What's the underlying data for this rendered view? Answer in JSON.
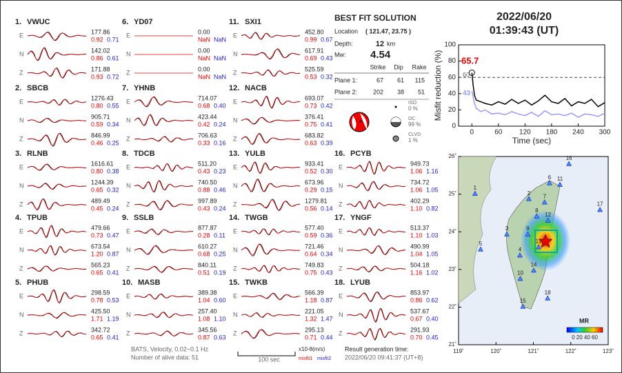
{
  "stations": [
    {
      "index": "1.",
      "name": "VWUC",
      "traces": [
        {
          "comp": "E",
          "amp": "177.86",
          "misfit1": "0.92",
          "misfit2": "0.71"
        },
        {
          "comp": "N",
          "amp": "142.02",
          "misfit1": "0.86",
          "misfit2": "0.61"
        },
        {
          "comp": "Z",
          "amp": "171.88",
          "misfit1": "0.93",
          "misfit2": "0.72"
        }
      ]
    },
    {
      "index": "2.",
      "name": "SBCB",
      "traces": [
        {
          "comp": "E",
          "amp": "1276.43",
          "misfit1": "0.80",
          "misfit2": "0.55"
        },
        {
          "comp": "N",
          "amp": "905.71",
          "misfit1": "0.59",
          "misfit2": "0.34"
        },
        {
          "comp": "Z",
          "amp": "846.99",
          "misfit1": "0.46",
          "misfit2": "0.25"
        }
      ]
    },
    {
      "index": "3.",
      "name": "RLNB",
      "traces": [
        {
          "comp": "E",
          "amp": "1616.61",
          "misfit1": "0.80",
          "misfit2": "0.38"
        },
        {
          "comp": "N",
          "amp": "1244.39",
          "misfit1": "0.65",
          "misfit2": "0.32"
        },
        {
          "comp": "Z",
          "amp": "489.49",
          "misfit1": "0.45",
          "misfit2": "0.24"
        }
      ]
    },
    {
      "index": "4.",
      "name": "TPUB",
      "traces": [
        {
          "comp": "E",
          "amp": "479.66",
          "misfit1": "0.73",
          "misfit2": "0.47"
        },
        {
          "comp": "N",
          "amp": "673.54",
          "misfit1": "1.20",
          "misfit2": "0.87"
        },
        {
          "comp": "Z",
          "amp": "565.23",
          "misfit1": "0.65",
          "misfit2": "0.41"
        }
      ]
    },
    {
      "index": "5.",
      "name": "PHUB",
      "traces": [
        {
          "comp": "E",
          "amp": "298.59",
          "misfit1": "0.78",
          "misfit2": "0.53"
        },
        {
          "comp": "N",
          "amp": "425.50",
          "misfit1": "1.71",
          "misfit2": "1.19"
        },
        {
          "comp": "Z",
          "amp": "342.72",
          "misfit1": "0.65",
          "misfit2": "0.41"
        }
      ]
    },
    {
      "index": "6.",
      "name": "YD07",
      "traces": [
        {
          "comp": "E",
          "amp": "0.00",
          "misfit1": "NaN",
          "misfit2": "NaN"
        },
        {
          "comp": "N",
          "amp": "0.00",
          "misfit1": "NaN",
          "misfit2": "NaN"
        },
        {
          "comp": "Z",
          "amp": "0.00",
          "misfit1": "NaN",
          "misfit2": "NaN"
        }
      ]
    },
    {
      "index": "7.",
      "name": "YHNB",
      "traces": [
        {
          "comp": "E",
          "amp": "714.07",
          "misfit1": "0.68",
          "misfit2": "0.40"
        },
        {
          "comp": "N",
          "amp": "423.44",
          "misfit1": "0.42",
          "misfit2": "0.24"
        },
        {
          "comp": "Z",
          "amp": "706.63",
          "misfit1": "0.33",
          "misfit2": "0.16"
        }
      ]
    },
    {
      "index": "8.",
      "name": "TDCB",
      "traces": [
        {
          "comp": "E",
          "amp": "511.20",
          "misfit1": "0.43",
          "misfit2": "0.23"
        },
        {
          "comp": "N",
          "amp": "740.50",
          "misfit1": "0.88",
          "misfit2": "0.46"
        },
        {
          "comp": "Z",
          "amp": "997.89",
          "misfit1": "0.43",
          "misfit2": "0.24"
        }
      ]
    },
    {
      "index": "9.",
      "name": "SSLB",
      "traces": [
        {
          "comp": "E",
          "amp": "877.87",
          "misfit1": "0.28",
          "misfit2": "0.11"
        },
        {
          "comp": "N",
          "amp": "610.27",
          "misfit1": "0.68",
          "misfit2": "0.25"
        },
        {
          "comp": "Z",
          "amp": "840.11",
          "misfit1": "0.51",
          "misfit2": "0.19"
        }
      ]
    },
    {
      "index": "10.",
      "name": "MASB",
      "traces": [
        {
          "comp": "E",
          "amp": "389.38",
          "misfit1": "1.04",
          "misfit2": "0.60"
        },
        {
          "comp": "N",
          "amp": "257.40",
          "misfit1": "1.08",
          "misfit2": "1.10"
        },
        {
          "comp": "Z",
          "amp": "345.56",
          "misfit1": "0.87",
          "misfit2": "0.63"
        }
      ]
    },
    {
      "index": "11.",
      "name": "SXI1",
      "traces": [
        {
          "comp": "E",
          "amp": "452.80",
          "misfit1": "0.99",
          "misfit2": "0.67"
        },
        {
          "comp": "N",
          "amp": "617.91",
          "misfit1": "0.69",
          "misfit2": "0.43"
        },
        {
          "comp": "Z",
          "amp": "525.59",
          "misfit1": "0.53",
          "misfit2": "0.32"
        }
      ]
    },
    {
      "index": "12.",
      "name": "NACB",
      "traces": [
        {
          "comp": "E",
          "amp": "693.07",
          "misfit1": "0.73",
          "misfit2": "0.42"
        },
        {
          "comp": "N",
          "amp": "376.41",
          "misfit1": "0.75",
          "misfit2": "0.41"
        },
        {
          "comp": "Z",
          "amp": "683.82",
          "misfit1": "0.63",
          "misfit2": "0.39"
        }
      ]
    },
    {
      "index": "13.",
      "name": "YULB",
      "traces": [
        {
          "comp": "E",
          "amp": "933.41",
          "misfit1": "0.52",
          "misfit2": "0.30"
        },
        {
          "comp": "N",
          "amp": "673.96",
          "misfit1": "0.29",
          "misfit2": "0.15"
        },
        {
          "comp": "Z",
          "amp": "1279.81",
          "misfit1": "0.56",
          "misfit2": "0.14"
        }
      ]
    },
    {
      "index": "14.",
      "name": "TWGB",
      "traces": [
        {
          "comp": "E",
          "amp": "577.40",
          "misfit1": "0.59",
          "misfit2": "0.36"
        },
        {
          "comp": "N",
          "amp": "721.46",
          "misfit1": "0.64",
          "misfit2": "0.34"
        },
        {
          "comp": "Z",
          "amp": "749.83",
          "misfit1": "0.75",
          "misfit2": "0.43"
        }
      ]
    },
    {
      "index": "15.",
      "name": "TWKB",
      "traces": [
        {
          "comp": "E",
          "amp": "566.39",
          "misfit1": "1.18",
          "misfit2": "0.87"
        },
        {
          "comp": "N",
          "amp": "221.05",
          "misfit1": "1.32",
          "misfit2": "1.47"
        },
        {
          "comp": "Z",
          "amp": "295.13",
          "misfit1": "0.71",
          "misfit2": "0.44"
        }
      ]
    },
    {
      "index": "16.",
      "name": "PCYB",
      "traces": [
        {
          "comp": "E",
          "amp": "949.73",
          "misfit1": "1.06",
          "misfit2": "1.16"
        },
        {
          "comp": "N",
          "amp": "734.72",
          "misfit1": "1.06",
          "misfit2": "1.05"
        },
        {
          "comp": "Z",
          "amp": "402.29",
          "misfit1": "1.10",
          "misfit2": "0.82"
        }
      ]
    },
    {
      "index": "17.",
      "name": "YNGF",
      "traces": [
        {
          "comp": "E",
          "amp": "513.37",
          "misfit1": "1.10",
          "misfit2": "1.03"
        },
        {
          "comp": "N",
          "amp": "490.99",
          "misfit1": "1.04",
          "misfit2": "1.05"
        },
        {
          "comp": "Z",
          "amp": "504.18",
          "misfit1": "1.16",
          "misfit2": "1.02"
        }
      ]
    },
    {
      "index": "18.",
      "name": "LYUB",
      "traces": [
        {
          "comp": "E",
          "amp": "853.97",
          "misfit1": "0.86",
          "misfit2": "0.62"
        },
        {
          "comp": "N",
          "amp": "537.67",
          "misfit1": "0.67",
          "misfit2": "0.40"
        },
        {
          "comp": "Z",
          "amp": "291.93",
          "misfit1": "0.70",
          "misfit2": "0.45"
        }
      ]
    }
  ],
  "solution": {
    "title": "BEST FIT SOLUTION",
    "location_label": "Location",
    "location": "( 121.47, 23.75 )",
    "depth_label": "Depth:",
    "depth": "12",
    "depth_unit": "km",
    "mw_label": "Mw:",
    "mw": "4.54",
    "headers": [
      "Strike",
      "Dip",
      "Rake"
    ],
    "planes": [
      {
        "label": "Plane 1:",
        "values": [
          "67",
          "61",
          "115"
        ]
      },
      {
        "label": "Plane 2:",
        "values": [
          "202",
          "38",
          "51"
        ]
      }
    ],
    "components": [
      {
        "name": "ISO",
        "percent": "0 %"
      },
      {
        "name": "DC",
        "percent": "99 %"
      },
      {
        "name": "CLVD",
        "percent": "1 %"
      }
    ]
  },
  "event_time": {
    "date": "2022/06/20",
    "time": "01:39:43  (UT)"
  },
  "misfit_chart": {
    "type": "line",
    "ylabel": "Misfit reduction (%)",
    "xlabel": "Time (sec)",
    "xlim": [
      -30,
      300
    ],
    "ylim": [
      0,
      100
    ],
    "xticks": [
      0,
      60,
      120,
      180,
      240,
      300
    ],
    "yticks": [
      0,
      20,
      40,
      60,
      80,
      100
    ],
    "threshold": 60,
    "annotations": {
      "best": "65.7",
      "threshold": "60",
      "blue_start": "43"
    },
    "x": [
      0,
      3,
      6,
      10,
      20,
      30,
      45,
      60,
      75,
      90,
      105,
      120,
      135,
      150,
      165,
      180,
      195,
      210,
      225,
      240,
      255,
      270,
      285,
      300
    ],
    "series": [
      {
        "color": "#000000",
        "values": [
          65.7,
          50,
          38,
          32,
          30,
          28,
          26,
          30,
          27,
          33,
          28,
          32,
          26,
          31,
          38,
          30,
          28,
          34,
          25,
          30,
          28,
          33,
          24,
          29
        ]
      },
      {
        "color": "#9999ff",
        "values": [
          43,
          36,
          28,
          22,
          18,
          20,
          15,
          16,
          14,
          18,
          15,
          13,
          17,
          12,
          19,
          14,
          15,
          13,
          16,
          11,
          15,
          14,
          12,
          16
        ]
      }
    ]
  },
  "map": {
    "lonlim": [
      119,
      123
    ],
    "latlim": [
      21,
      26
    ],
    "lonticks": [
      {
        "value": 119,
        "label": "119˚"
      },
      {
        "value": 120,
        "label": "120˚"
      },
      {
        "value": 121,
        "label": "121˚"
      },
      {
        "value": 122,
        "label": "122˚"
      },
      {
        "value": 123,
        "label": "123˚"
      }
    ],
    "latticks": [
      {
        "value": 21,
        "label": "21˚"
      },
      {
        "value": 22,
        "label": "22˚"
      },
      {
        "value": 23,
        "label": "23˚"
      },
      {
        "value": 24,
        "label": "24˚"
      },
      {
        "value": 25,
        "label": "25˚"
      },
      {
        "value": 26,
        "label": "26˚"
      }
    ],
    "stations": [
      {
        "label": "1",
        "lon": 119.44,
        "lat": 25.01
      },
      {
        "label": "2",
        "lon": 120.88,
        "lat": 24.87
      },
      {
        "label": "3",
        "lon": 120.29,
        "lat": 23.93
      },
      {
        "label": "4",
        "lon": 120.64,
        "lat": 23.37
      },
      {
        "label": "5",
        "lon": 119.59,
        "lat": 23.53
      },
      {
        "label": "6",
        "lon": 121.43,
        "lat": 25.29
      },
      {
        "label": "7",
        "lon": 121.3,
        "lat": 24.78
      },
      {
        "label": "8",
        "lon": 121.09,
        "lat": 24.41
      },
      {
        "label": "9",
        "lon": 120.85,
        "lat": 23.93
      },
      {
        "label": "10",
        "lon": 120.65,
        "lat": 22.75
      },
      {
        "label": "11",
        "lon": 121.71,
        "lat": 25.25
      },
      {
        "label": "12",
        "lon": 121.39,
        "lat": 24.3
      },
      {
        "label": "13",
        "lon": 121.14,
        "lat": 23.59
      },
      {
        "label": "14",
        "lon": 121.01,
        "lat": 22.97
      },
      {
        "label": "15",
        "lon": 120.72,
        "lat": 22.01
      },
      {
        "label": "16",
        "lon": 121.95,
        "lat": 25.8
      },
      {
        "label": "17",
        "lon": 122.78,
        "lat": 24.58
      },
      {
        "label": "18",
        "lon": 121.38,
        "lat": 22.23
      }
    ],
    "colorbar_title": "MR",
    "colorbar_labels": "0 20 40 60"
  },
  "footer": {
    "source": "BATS, Velocity, 0.02~0.1 Hz",
    "alive": "Number of alive data: 51",
    "scale": "100 sec",
    "units": "x10-8(m/s)",
    "misfit1": "misfit1",
    "misfit2": "misfit2",
    "generated_label": "Result generation time:",
    "generated": "2022/06/20 09:41:37 (UT+8)"
  }
}
